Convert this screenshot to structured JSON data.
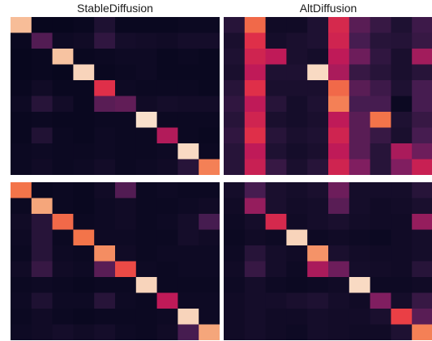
{
  "chart_data": [
    {
      "type": "heatmap",
      "title": "StableDiffusion",
      "grid": false,
      "colormap": "rocket",
      "matrix": [
        [
          0.92,
          0.02,
          0.02,
          0.03,
          0.12,
          0.03,
          0.03,
          0.03,
          0.04,
          0.04
        ],
        [
          0.03,
          0.28,
          0.05,
          0.06,
          0.18,
          0.08,
          0.07,
          0.06,
          0.08,
          0.08
        ],
        [
          0.02,
          0.03,
          0.93,
          0.03,
          0.04,
          0.05,
          0.05,
          0.03,
          0.04,
          0.03
        ],
        [
          0.02,
          0.03,
          0.02,
          0.96,
          0.03,
          0.04,
          0.05,
          0.03,
          0.03,
          0.03
        ],
        [
          0.03,
          0.06,
          0.03,
          0.03,
          0.65,
          0.05,
          0.04,
          0.04,
          0.04,
          0.03
        ],
        [
          0.05,
          0.15,
          0.07,
          0.03,
          0.3,
          0.32,
          0.06,
          0.08,
          0.07,
          0.07
        ],
        [
          0.03,
          0.04,
          0.03,
          0.03,
          0.04,
          0.04,
          0.98,
          0.04,
          0.04,
          0.04
        ],
        [
          0.03,
          0.13,
          0.04,
          0.03,
          0.05,
          0.04,
          0.04,
          0.52,
          0.04,
          0.03
        ],
        [
          0.04,
          0.05,
          0.04,
          0.04,
          0.05,
          0.04,
          0.04,
          0.05,
          0.97,
          0.04
        ],
        [
          0.04,
          0.06,
          0.04,
          0.05,
          0.07,
          0.04,
          0.05,
          0.06,
          0.15,
          0.82
        ]
      ]
    },
    {
      "type": "heatmap",
      "title": "AltDiffusion",
      "grid": false,
      "colormap": "rocket",
      "matrix": [
        [
          0.15,
          0.78,
          0.06,
          0.06,
          0.12,
          0.62,
          0.3,
          0.2,
          0.12,
          0.22
        ],
        [
          0.1,
          0.65,
          0.08,
          0.1,
          0.12,
          0.6,
          0.25,
          0.15,
          0.14,
          0.2
        ],
        [
          0.12,
          0.6,
          0.55,
          0.1,
          0.08,
          0.55,
          0.35,
          0.18,
          0.1,
          0.48
        ],
        [
          0.1,
          0.55,
          0.12,
          0.12,
          0.97,
          0.5,
          0.2,
          0.15,
          0.1,
          0.15
        ],
        [
          0.15,
          0.65,
          0.1,
          0.1,
          0.1,
          0.78,
          0.3,
          0.22,
          0.12,
          0.25
        ],
        [
          0.18,
          0.55,
          0.15,
          0.08,
          0.12,
          0.82,
          0.25,
          0.25,
          0.04,
          0.25
        ],
        [
          0.15,
          0.6,
          0.1,
          0.08,
          0.1,
          0.55,
          0.3,
          0.8,
          0.12,
          0.2
        ],
        [
          0.18,
          0.65,
          0.15,
          0.1,
          0.12,
          0.6,
          0.3,
          0.2,
          0.1,
          0.25
        ],
        [
          0.15,
          0.55,
          0.12,
          0.08,
          0.1,
          0.55,
          0.3,
          0.15,
          0.5,
          0.35
        ],
        [
          0.15,
          0.58,
          0.2,
          0.1,
          0.15,
          0.6,
          0.4,
          0.15,
          0.4,
          0.58
        ]
      ]
    },
    {
      "type": "heatmap",
      "title": "",
      "grid": false,
      "colormap": "rocket",
      "matrix": [
        [
          0.8,
          0.03,
          0.04,
          0.03,
          0.06,
          0.28,
          0.04,
          0.05,
          0.04,
          0.04
        ],
        [
          0.04,
          0.88,
          0.04,
          0.03,
          0.05,
          0.06,
          0.04,
          0.04,
          0.05,
          0.06
        ],
        [
          0.06,
          0.15,
          0.78,
          0.04,
          0.05,
          0.06,
          0.04,
          0.05,
          0.08,
          0.25
        ],
        [
          0.05,
          0.15,
          0.04,
          0.8,
          0.05,
          0.05,
          0.04,
          0.04,
          0.08,
          0.06
        ],
        [
          0.04,
          0.15,
          0.05,
          0.04,
          0.84,
          0.06,
          0.04,
          0.05,
          0.05,
          0.05
        ],
        [
          0.06,
          0.2,
          0.06,
          0.05,
          0.3,
          0.72,
          0.05,
          0.04,
          0.05,
          0.05
        ],
        [
          0.04,
          0.05,
          0.04,
          0.03,
          0.04,
          0.04,
          0.96,
          0.04,
          0.04,
          0.04
        ],
        [
          0.05,
          0.12,
          0.05,
          0.05,
          0.15,
          0.05,
          0.04,
          0.55,
          0.05,
          0.05
        ],
        [
          0.04,
          0.06,
          0.04,
          0.03,
          0.04,
          0.04,
          0.04,
          0.05,
          0.96,
          0.05
        ],
        [
          0.05,
          0.06,
          0.08,
          0.06,
          0.08,
          0.05,
          0.04,
          0.06,
          0.25,
          0.88
        ]
      ]
    },
    {
      "type": "heatmap",
      "title": "",
      "grid": false,
      "colormap": "rocket",
      "matrix": [
        [
          0.08,
          0.25,
          0.1,
          0.08,
          0.1,
          0.35,
          0.08,
          0.08,
          0.08,
          0.15
        ],
        [
          0.06,
          0.45,
          0.1,
          0.07,
          0.08,
          0.3,
          0.08,
          0.06,
          0.07,
          0.1
        ],
        [
          0.05,
          0.08,
          0.62,
          0.06,
          0.08,
          0.1,
          0.07,
          0.06,
          0.06,
          0.45
        ],
        [
          0.04,
          0.06,
          0.05,
          0.96,
          0.05,
          0.06,
          0.05,
          0.04,
          0.06,
          0.08
        ],
        [
          0.05,
          0.15,
          0.08,
          0.06,
          0.85,
          0.1,
          0.07,
          0.06,
          0.06,
          0.08
        ],
        [
          0.06,
          0.2,
          0.08,
          0.05,
          0.5,
          0.35,
          0.08,
          0.07,
          0.06,
          0.15
        ],
        [
          0.05,
          0.08,
          0.05,
          0.04,
          0.05,
          0.06,
          0.97,
          0.05,
          0.05,
          0.06
        ],
        [
          0.06,
          0.08,
          0.08,
          0.1,
          0.12,
          0.08,
          0.06,
          0.4,
          0.08,
          0.2
        ],
        [
          0.06,
          0.08,
          0.06,
          0.06,
          0.08,
          0.07,
          0.07,
          0.1,
          0.7,
          0.3
        ],
        [
          0.06,
          0.08,
          0.06,
          0.05,
          0.08,
          0.07,
          0.06,
          0.06,
          0.12,
          0.82
        ]
      ]
    }
  ]
}
